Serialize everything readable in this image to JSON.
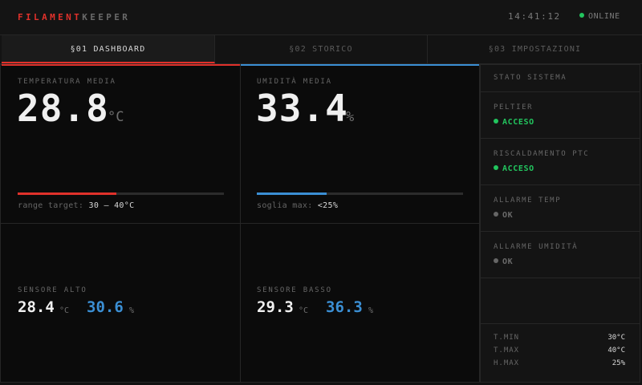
{
  "header": {
    "brand_part1": "FILAMENT",
    "brand_part2": "KEEPER",
    "clock": "14:41:12",
    "status": "ONLINE",
    "status_color": "#22c55e"
  },
  "tabs": [
    {
      "label": "§01 DASHBOARD",
      "active": true
    },
    {
      "label": "§02 STORICO",
      "active": false
    },
    {
      "label": "§03 IMPOSTAZIONI",
      "active": false
    }
  ],
  "temperature": {
    "label": "TEMPERATURA MEDIA",
    "value": "28.8",
    "unit": "°C",
    "progress": 0.48,
    "range_label": "range target:",
    "range_value": "30 — 40°C",
    "color": "#e0312b"
  },
  "humidity": {
    "label": "UMIDITÀ MEDIA",
    "value": "33.4",
    "unit": "%",
    "progress": 0.34,
    "threshold_label": "soglia max:",
    "threshold_value": "<25%",
    "color": "#3b8fd4"
  },
  "sensor_high": {
    "label": "SENSORE ALTO",
    "temp": "28.4",
    "temp_unit": "°C",
    "hum": "30.6",
    "hum_unit": "%"
  },
  "sensor_low": {
    "label": "SENSORE BASSO",
    "temp": "29.3",
    "temp_unit": "°C",
    "hum": "36.3",
    "hum_unit": "%"
  },
  "system": {
    "title": "STATO SISTEMA",
    "items": [
      {
        "label": "PELTIER",
        "value": "ACCESO",
        "state": "on"
      },
      {
        "label": "RISCALDAMENTO PTC",
        "value": "ACCESO",
        "state": "on"
      },
      {
        "label": "ALLARME TEMP",
        "value": "OK",
        "state": "off"
      },
      {
        "label": "ALLARME UMIDITÀ",
        "value": "OK",
        "state": "off"
      }
    ],
    "limits": [
      {
        "key": "T.MIN",
        "value": "30°C"
      },
      {
        "key": "T.MAX",
        "value": "40°C"
      },
      {
        "key": "H.MAX",
        "value": "25%"
      }
    ]
  }
}
